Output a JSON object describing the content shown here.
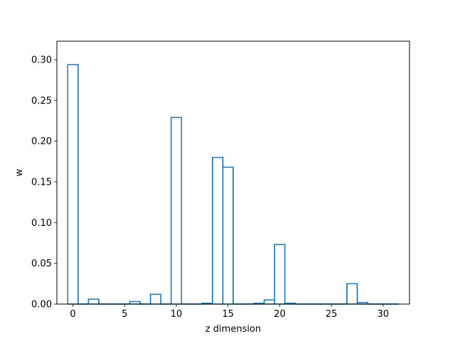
{
  "chart_data": {
    "type": "step",
    "title": "",
    "xlabel": "z dimension",
    "ylabel": "w",
    "xlim": [
      -1.55,
      32.55
    ],
    "ylim": [
      0,
      0.3227
    ],
    "x_ticks": [
      0,
      5,
      10,
      15,
      20,
      25,
      30
    ],
    "y_ticks": [
      0.0,
      0.05,
      0.1,
      0.15,
      0.2,
      0.25,
      0.3
    ],
    "x_tick_labels": [
      "0",
      "5",
      "10",
      "15",
      "20",
      "25",
      "30"
    ],
    "y_tick_labels": [
      "0.00",
      "0.05",
      "0.10",
      "0.15",
      "0.20",
      "0.25",
      "0.30"
    ],
    "grid": false,
    "line_color": "#1f77b4",
    "series": [
      {
        "x": [
          0,
          1,
          2,
          3,
          4,
          5,
          6,
          7,
          8,
          9,
          10,
          11,
          12,
          13,
          14,
          15,
          16,
          17,
          18,
          19,
          20,
          21,
          22,
          23,
          24,
          25,
          26,
          27,
          28,
          29,
          30,
          31
        ],
        "values": [
          0.294,
          0.0,
          0.006,
          0.0,
          0.0,
          0.0,
          0.003,
          0.0,
          0.012,
          0.0,
          0.229,
          0.0,
          0.0,
          0.001,
          0.18,
          0.168,
          0.0,
          0.0,
          0.001,
          0.005,
          0.073,
          0.001,
          0.0,
          0.0,
          0.0,
          0.0,
          0.0,
          0.025,
          0.002,
          0.0,
          0.0,
          0.0
        ]
      }
    ]
  }
}
